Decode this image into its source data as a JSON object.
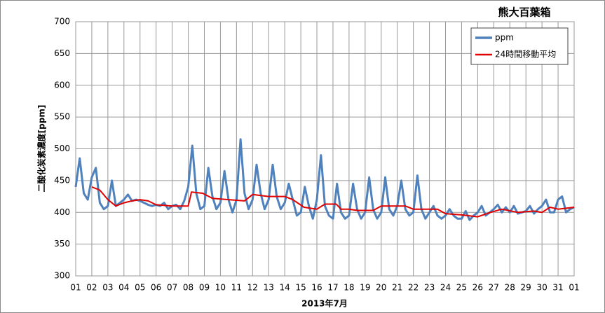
{
  "chart_data": {
    "type": "line",
    "title": "熊大百葉箱",
    "y_label": "二酸化炭素濃度[ppm]",
    "x_label": "2013年7月",
    "xlim": [
      0,
      31
    ],
    "ylim": [
      300,
      700
    ],
    "yticks": [
      300,
      350,
      400,
      450,
      500,
      550,
      600,
      650,
      700
    ],
    "xticks": [
      {
        "value": 0,
        "label": "01"
      },
      {
        "value": 1,
        "label": "02"
      },
      {
        "value": 2,
        "label": "03"
      },
      {
        "value": 3,
        "label": "04"
      },
      {
        "value": 4,
        "label": "05"
      },
      {
        "value": 5,
        "label": "06"
      },
      {
        "value": 6,
        "label": "07"
      },
      {
        "value": 7,
        "label": "08"
      },
      {
        "value": 8,
        "label": "09"
      },
      {
        "value": 9,
        "label": "10"
      },
      {
        "value": 10,
        "label": "11"
      },
      {
        "value": 11,
        "label": "12"
      },
      {
        "value": 12,
        "label": "13"
      },
      {
        "value": 13,
        "label": "14"
      },
      {
        "value": 14,
        "label": "15"
      },
      {
        "value": 15,
        "label": "16"
      },
      {
        "value": 16,
        "label": "17"
      },
      {
        "value": 17,
        "label": "18"
      },
      {
        "value": 18,
        "label": "19"
      },
      {
        "value": 19,
        "label": "20"
      },
      {
        "value": 20,
        "label": "21"
      },
      {
        "value": 21,
        "label": "22"
      },
      {
        "value": 22,
        "label": "23"
      },
      {
        "value": 23,
        "label": "24"
      },
      {
        "value": 24,
        "label": "25"
      },
      {
        "value": 25,
        "label": "26"
      },
      {
        "value": 26,
        "label": "27"
      },
      {
        "value": 27,
        "label": "28"
      },
      {
        "value": 28,
        "label": "29"
      },
      {
        "value": 29,
        "label": "30"
      },
      {
        "value": 30,
        "label": "31"
      },
      {
        "value": 31,
        "label": "01"
      }
    ],
    "grid": true,
    "legend": "top-right",
    "series": [
      {
        "name": "ppm",
        "color": "#4f81bd",
        "width": 3,
        "x": [
          0,
          0.25,
          0.5,
          0.75,
          1,
          1.25,
          1.5,
          1.75,
          2,
          2.25,
          2.5,
          2.75,
          3,
          3.25,
          3.5,
          3.75,
          4,
          4.25,
          4.5,
          4.75,
          5,
          5.25,
          5.5,
          5.75,
          6,
          6.25,
          6.5,
          6.75,
          7,
          7.25,
          7.5,
          7.75,
          8,
          8.25,
          8.5,
          8.75,
          9,
          9.25,
          9.5,
          9.75,
          10,
          10.25,
          10.5,
          10.75,
          11,
          11.25,
          11.5,
          11.75,
          12,
          12.25,
          12.5,
          12.75,
          13,
          13.25,
          13.5,
          13.75,
          14,
          14.25,
          14.5,
          14.75,
          15,
          15.25,
          15.5,
          15.75,
          16,
          16.25,
          16.5,
          16.75,
          17,
          17.25,
          17.5,
          17.75,
          18,
          18.25,
          18.5,
          18.75,
          19,
          19.25,
          19.5,
          19.75,
          20,
          20.25,
          20.5,
          20.75,
          21,
          21.25,
          21.5,
          21.75,
          22,
          22.25,
          22.5,
          22.75,
          23,
          23.25,
          23.5,
          23.75,
          24,
          24.25,
          24.5,
          24.75,
          25,
          25.25,
          25.5,
          25.75,
          26,
          26.25,
          26.5,
          26.75,
          27,
          27.25,
          27.5,
          27.75,
          28,
          28.25,
          28.5,
          28.75,
          29,
          29.25,
          29.5,
          29.75,
          30,
          30.25,
          30.5,
          30.75,
          31
        ],
        "values": [
          440,
          485,
          430,
          420,
          455,
          470,
          415,
          405,
          410,
          450,
          410,
          415,
          420,
          428,
          418,
          420,
          418,
          415,
          412,
          410,
          412,
          410,
          415,
          405,
          410,
          412,
          405,
          418,
          440,
          505,
          430,
          405,
          410,
          470,
          425,
          405,
          415,
          465,
          420,
          400,
          420,
          515,
          430,
          405,
          420,
          475,
          430,
          405,
          420,
          475,
          425,
          405,
          415,
          445,
          420,
          395,
          400,
          440,
          410,
          390,
          420,
          490,
          410,
          395,
          390,
          445,
          400,
          390,
          395,
          445,
          405,
          390,
          400,
          455,
          405,
          390,
          400,
          455,
          405,
          395,
          410,
          450,
          405,
          395,
          400,
          458,
          405,
          390,
          400,
          410,
          395,
          390,
          395,
          405,
          395,
          390,
          390,
          402,
          388,
          395,
          400,
          410,
          395,
          400,
          405,
          412,
          400,
          408,
          400,
          410,
          398,
          400,
          402,
          410,
          398,
          405,
          410,
          420,
          400,
          400,
          420,
          425,
          400,
          405,
          408
        ]
      },
      {
        "name": "24時間移動平均",
        "color": "#e00000",
        "width": 2,
        "x": [
          1,
          1.5,
          2,
          2.5,
          3,
          3.5,
          4,
          4.5,
          5,
          6,
          7,
          7.2,
          7.9,
          8.5,
          9.5,
          10.5,
          11,
          12,
          13,
          13.5,
          14.2,
          15,
          15.5,
          16.2,
          16.5,
          17,
          17.5,
          18.5,
          19,
          20.5,
          21,
          22.5,
          23,
          24,
          25,
          25.8,
          26.5,
          27.5,
          28.5,
          29,
          29.5,
          30,
          31
        ],
        "values": [
          440,
          435,
          420,
          410,
          415,
          418,
          420,
          418,
          412,
          410,
          410,
          432,
          430,
          422,
          420,
          418,
          428,
          425,
          425,
          420,
          408,
          405,
          413,
          413,
          405,
          405,
          403,
          403,
          410,
          410,
          405,
          405,
          398,
          396,
          393,
          400,
          405,
          400,
          402,
          400,
          408,
          405,
          408
        ]
      }
    ]
  }
}
